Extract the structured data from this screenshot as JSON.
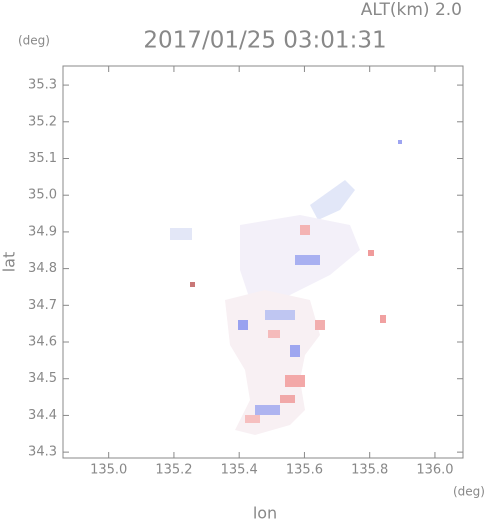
{
  "chart_data": {
    "type": "field-map",
    "title": "2017/01/25 03:01:31",
    "annotation": "ALT(km) 2.0",
    "y_unit": "(deg)",
    "x_unit": "(deg)",
    "xlabel": "lon",
    "ylabel": "lat",
    "xlim": [
      134.86,
      136.086
    ],
    "ylim": [
      34.284,
      35.352
    ],
    "xticks": [
      {
        "value": 135.0,
        "label": "135.0"
      },
      135.2,
      135.4,
      135.6,
      135.8,
      {
        "value": 136.0,
        "label": "136.0"
      }
    ],
    "yticks": [
      34.3,
      34.4,
      34.5,
      34.6,
      34.7,
      34.8,
      34.9,
      {
        "value": 35.0,
        "label": "35.0"
      },
      35.1,
      35.2,
      35.3
    ]
  }
}
